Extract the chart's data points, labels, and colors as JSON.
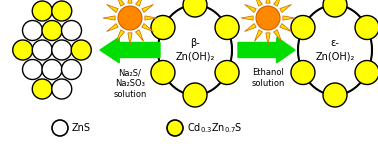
{
  "bg_color": "#ffffff",
  "zns_color": "#ffffff",
  "zns_edge": "#000000",
  "cdzns_color": "#ffff00",
  "cdzns_edge": "#000000",
  "shell_bg": "#ffffff",
  "shell_edge": "#000000",
  "arrow_color": "#00dd00",
  "sun_center": "#ff8800",
  "sun_ray": "#ffdd00",
  "sun_ray_edge": "#cc6600",
  "text_color": "#000000",
  "beta_label": "β-\nZn(OH)₂",
  "epsilon_label": "ε-\nZn(OH)₂",
  "left_label": "Na₂S/\nNa₂SO₃\nsolution",
  "right_label": "Ethanol\nsolution",
  "legend_zns": "ZnS",
  "legend_cdzns": "Cd$_{0.3}$Zn$_{0.7}$S",
  "figw": 3.78,
  "figh": 1.47,
  "dpi": 100
}
